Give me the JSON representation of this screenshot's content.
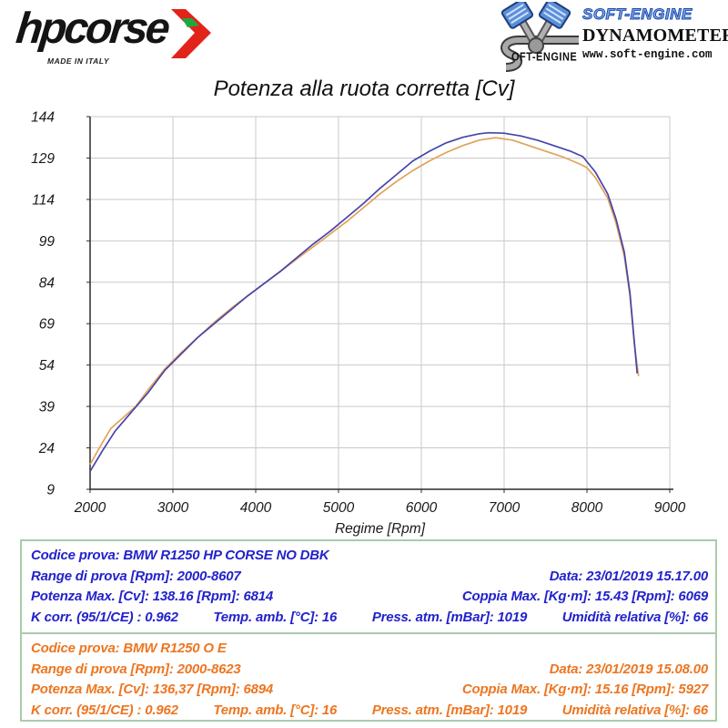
{
  "header": {
    "hpcorse_wordmark": "hpcorse",
    "hpcorse_tagline": "MADE IN ITALY",
    "softengine_s_label": "OFT-ENGINE",
    "softengine_brand": "SOFT-ENGINE",
    "softengine_subtitle": "DYNAMOMETERS",
    "softengine_site": "www.soft-engine.com"
  },
  "chart_data": {
    "type": "line",
    "title": "Potenza alla ruota corretta [Cv]",
    "xlabel": "Regime [Rpm]",
    "ylabel": "",
    "xlim": [
      2000,
      9000
    ],
    "ylim": [
      9,
      144
    ],
    "x_ticks": [
      2000,
      3000,
      4000,
      5000,
      6000,
      7000,
      8000,
      9000
    ],
    "y_ticks": [
      9,
      24,
      39,
      54,
      69,
      84,
      99,
      114,
      129,
      144
    ],
    "grid": true,
    "legend_position": "none",
    "series": [
      {
        "name": "BMW R1250 HP CORSE NO DBK",
        "color": "#4545ab",
        "points": [
          [
            2000,
            15.5
          ],
          [
            2150,
            23
          ],
          [
            2300,
            30
          ],
          [
            2500,
            37
          ],
          [
            2700,
            44
          ],
          [
            2900,
            52
          ],
          [
            3100,
            58
          ],
          [
            3300,
            64
          ],
          [
            3500,
            69
          ],
          [
            3700,
            74
          ],
          [
            3900,
            79
          ],
          [
            4100,
            83.5
          ],
          [
            4300,
            88
          ],
          [
            4500,
            93
          ],
          [
            4700,
            98
          ],
          [
            4900,
            102.5
          ],
          [
            5100,
            107.5
          ],
          [
            5300,
            112.5
          ],
          [
            5500,
            118
          ],
          [
            5700,
            123
          ],
          [
            5900,
            128
          ],
          [
            6100,
            131.5
          ],
          [
            6300,
            134.5
          ],
          [
            6500,
            136.5
          ],
          [
            6700,
            137.8
          ],
          [
            6814,
            138.16
          ],
          [
            7000,
            138
          ],
          [
            7200,
            137
          ],
          [
            7400,
            135.5
          ],
          [
            7600,
            133.5
          ],
          [
            7800,
            131.5
          ],
          [
            7950,
            129.5
          ],
          [
            8100,
            124
          ],
          [
            8250,
            116
          ],
          [
            8350,
            107
          ],
          [
            8450,
            95
          ],
          [
            8520,
            80
          ],
          [
            8570,
            63
          ],
          [
            8607,
            51
          ]
        ]
      },
      {
        "name": "BMW R1250 O E",
        "color": "#e2a257",
        "points": [
          [
            2000,
            18
          ],
          [
            2150,
            26
          ],
          [
            2250,
            31
          ],
          [
            2400,
            35
          ],
          [
            2550,
            39
          ],
          [
            2700,
            45
          ],
          [
            2900,
            52.5
          ],
          [
            3100,
            58.5
          ],
          [
            3300,
            64
          ],
          [
            3500,
            69.5
          ],
          [
            3700,
            74.5
          ],
          [
            3900,
            79
          ],
          [
            4100,
            83.5
          ],
          [
            4300,
            88
          ],
          [
            4500,
            92.5
          ],
          [
            4700,
            97
          ],
          [
            4900,
            101.5
          ],
          [
            5100,
            106
          ],
          [
            5300,
            111
          ],
          [
            5500,
            116
          ],
          [
            5700,
            120.5
          ],
          [
            5900,
            124.5
          ],
          [
            6100,
            128
          ],
          [
            6300,
            131
          ],
          [
            6500,
            133.5
          ],
          [
            6700,
            135.5
          ],
          [
            6894,
            136.37
          ],
          [
            7100,
            135.5
          ],
          [
            7300,
            133.5
          ],
          [
            7500,
            131.5
          ],
          [
            7700,
            129.5
          ],
          [
            7900,
            127
          ],
          [
            8000,
            125.5
          ],
          [
            8100,
            122
          ],
          [
            8250,
            114.5
          ],
          [
            8350,
            105.5
          ],
          [
            8450,
            93.5
          ],
          [
            8520,
            79
          ],
          [
            8570,
            62
          ],
          [
            8623,
            50
          ]
        ]
      }
    ]
  },
  "results": [
    {
      "theme_color": "#2222cc",
      "codice": "Codice prova: BMW R1250 HP CORSE NO DBK",
      "range": "Range di prova [Rpm]: 2000-8607",
      "data": "Data: 23/01/2019  15.17.00",
      "potenza": "Potenza Max. [Cv]: 138.16  [Rpm]: 6814",
      "coppia": "Coppia Max. [Kg·m]: 15.43  [Rpm]: 6069",
      "k_corr": "K corr. (95/1/CE) : 0.962",
      "temp": "Temp. amb. [°C]: 16",
      "press": "Press. atm. [mBar]: 1019",
      "umidita": "Umidità relativa [%]: 66"
    },
    {
      "theme_color": "#ed7621",
      "codice": "Codice prova: BMW R1250 O E",
      "range": "Range di prova [Rpm]: 2000-8623",
      "data": "Data: 23/01/2019  15.08.00",
      "potenza": "Potenza Max. [Cv]: 136,37  [Rpm]: 6894",
      "coppia": "Coppia Max. [Kg·m]: 15.16  [Rpm]: 5927",
      "k_corr": "K corr. (95/1/CE) : 0.962",
      "temp": "Temp. amb. [°C]: 16",
      "press": "Press. atm. [mBar]: 1019",
      "umidita": "Umidità relativa [%]: 66"
    }
  ],
  "colors": {
    "table_border": "#a9cba9",
    "grid": "#c9c9c9",
    "axis": "#2b2b2b",
    "curve_blue": "#4545ab",
    "curve_orange": "#e2a257"
  }
}
